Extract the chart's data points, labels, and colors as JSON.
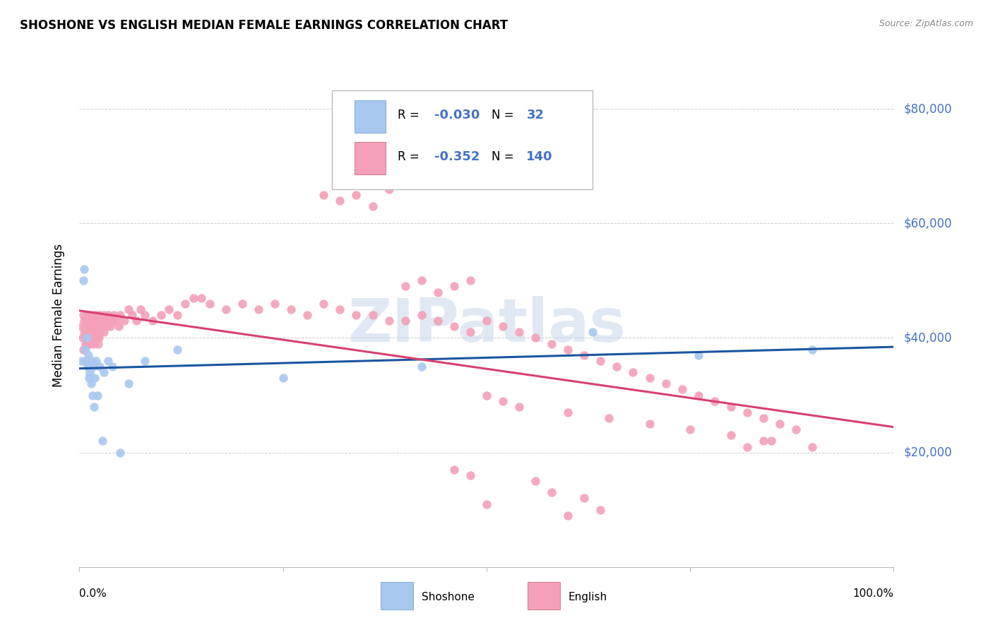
{
  "title": "SHOSHONE VS ENGLISH MEDIAN FEMALE EARNINGS CORRELATION CHART",
  "source": "Source: ZipAtlas.com",
  "ylabel": "Median Female Earnings",
  "ytick_values": [
    20000,
    40000,
    60000,
    80000
  ],
  "ytick_labels": [
    "$20,000",
    "$40,000",
    "$60,000",
    "$80,000"
  ],
  "ylim": [
    0,
    88000
  ],
  "xlim": [
    0.0,
    1.0
  ],
  "shoshone_color": "#a8c8f0",
  "english_color": "#f4a0b8",
  "shoshone_line_color": "#1a56a0",
  "english_line_color": "#d84070",
  "watermark": "ZIPatlas",
  "shoshone_x": [
    0.003,
    0.005,
    0.006,
    0.007,
    0.008,
    0.009,
    0.01,
    0.011,
    0.012,
    0.013,
    0.014,
    0.015,
    0.016,
    0.017,
    0.018,
    0.019,
    0.02,
    0.022,
    0.025,
    0.028,
    0.03,
    0.035,
    0.04,
    0.05,
    0.06,
    0.08,
    0.12,
    0.25,
    0.42,
    0.63,
    0.76,
    0.9
  ],
  "shoshone_y": [
    36000,
    50000,
    52000,
    38000,
    36000,
    40000,
    35000,
    37000,
    33000,
    34000,
    32000,
    36000,
    30000,
    35000,
    28000,
    33000,
    36000,
    30000,
    35000,
    22000,
    34000,
    36000,
    35000,
    20000,
    32000,
    36000,
    38000,
    33000,
    35000,
    41000,
    37000,
    38000
  ],
  "english_x": [
    0.003,
    0.004,
    0.005,
    0.005,
    0.006,
    0.006,
    0.007,
    0.007,
    0.008,
    0.008,
    0.009,
    0.009,
    0.01,
    0.01,
    0.011,
    0.011,
    0.012,
    0.012,
    0.013,
    0.013,
    0.014,
    0.014,
    0.015,
    0.015,
    0.016,
    0.016,
    0.017,
    0.017,
    0.018,
    0.018,
    0.019,
    0.019,
    0.02,
    0.02,
    0.021,
    0.021,
    0.022,
    0.022,
    0.023,
    0.023,
    0.024,
    0.024,
    0.025,
    0.025,
    0.026,
    0.027,
    0.028,
    0.029,
    0.03,
    0.03,
    0.032,
    0.033,
    0.035,
    0.036,
    0.038,
    0.04,
    0.042,
    0.045,
    0.048,
    0.05,
    0.055,
    0.06,
    0.065,
    0.07,
    0.075,
    0.08,
    0.09,
    0.1,
    0.11,
    0.12,
    0.13,
    0.14,
    0.15,
    0.16,
    0.18,
    0.2,
    0.22,
    0.24,
    0.26,
    0.28,
    0.3,
    0.32,
    0.34,
    0.36,
    0.38,
    0.4,
    0.42,
    0.44,
    0.46,
    0.48,
    0.5,
    0.52,
    0.54,
    0.56,
    0.58,
    0.6,
    0.62,
    0.64,
    0.66,
    0.68,
    0.7,
    0.72,
    0.74,
    0.76,
    0.78,
    0.8,
    0.82,
    0.84,
    0.86,
    0.88,
    0.56,
    0.58,
    0.46,
    0.48,
    0.5,
    0.62,
    0.64,
    0.82,
    0.84,
    0.6,
    0.3,
    0.32,
    0.34,
    0.36,
    0.38,
    0.4,
    0.42,
    0.44,
    0.46,
    0.48,
    0.5,
    0.52,
    0.54,
    0.6,
    0.65,
    0.7,
    0.75,
    0.8,
    0.85,
    0.9
  ],
  "english_y": [
    42000,
    40000,
    44000,
    38000,
    43000,
    41000,
    42000,
    39000,
    43000,
    40000,
    44000,
    41000,
    42000,
    39000,
    43000,
    40000,
    44000,
    41000,
    42000,
    39000,
    43000,
    40000,
    44000,
    41000,
    43000,
    40000,
    42000,
    39000,
    43000,
    40000,
    44000,
    41000,
    43000,
    40000,
    44000,
    41000,
    43000,
    40000,
    42000,
    39000,
    43000,
    40000,
    44000,
    41000,
    43000,
    42000,
    43000,
    42000,
    44000,
    41000,
    43000,
    42000,
    44000,
    43000,
    42000,
    43000,
    44000,
    43000,
    42000,
    44000,
    43000,
    45000,
    44000,
    43000,
    45000,
    44000,
    43000,
    44000,
    45000,
    44000,
    46000,
    47000,
    47000,
    46000,
    45000,
    46000,
    45000,
    46000,
    45000,
    44000,
    46000,
    45000,
    44000,
    44000,
    43000,
    43000,
    44000,
    43000,
    42000,
    41000,
    43000,
    42000,
    41000,
    40000,
    39000,
    38000,
    37000,
    36000,
    35000,
    34000,
    33000,
    32000,
    31000,
    30000,
    29000,
    28000,
    27000,
    26000,
    25000,
    24000,
    15000,
    13000,
    17000,
    16000,
    11000,
    12000,
    10000,
    21000,
    22000,
    9000,
    65000,
    64000,
    65000,
    63000,
    66000,
    49000,
    50000,
    48000,
    49000,
    50000,
    30000,
    29000,
    28000,
    27000,
    26000,
    25000,
    24000,
    23000,
    22000,
    21000
  ]
}
